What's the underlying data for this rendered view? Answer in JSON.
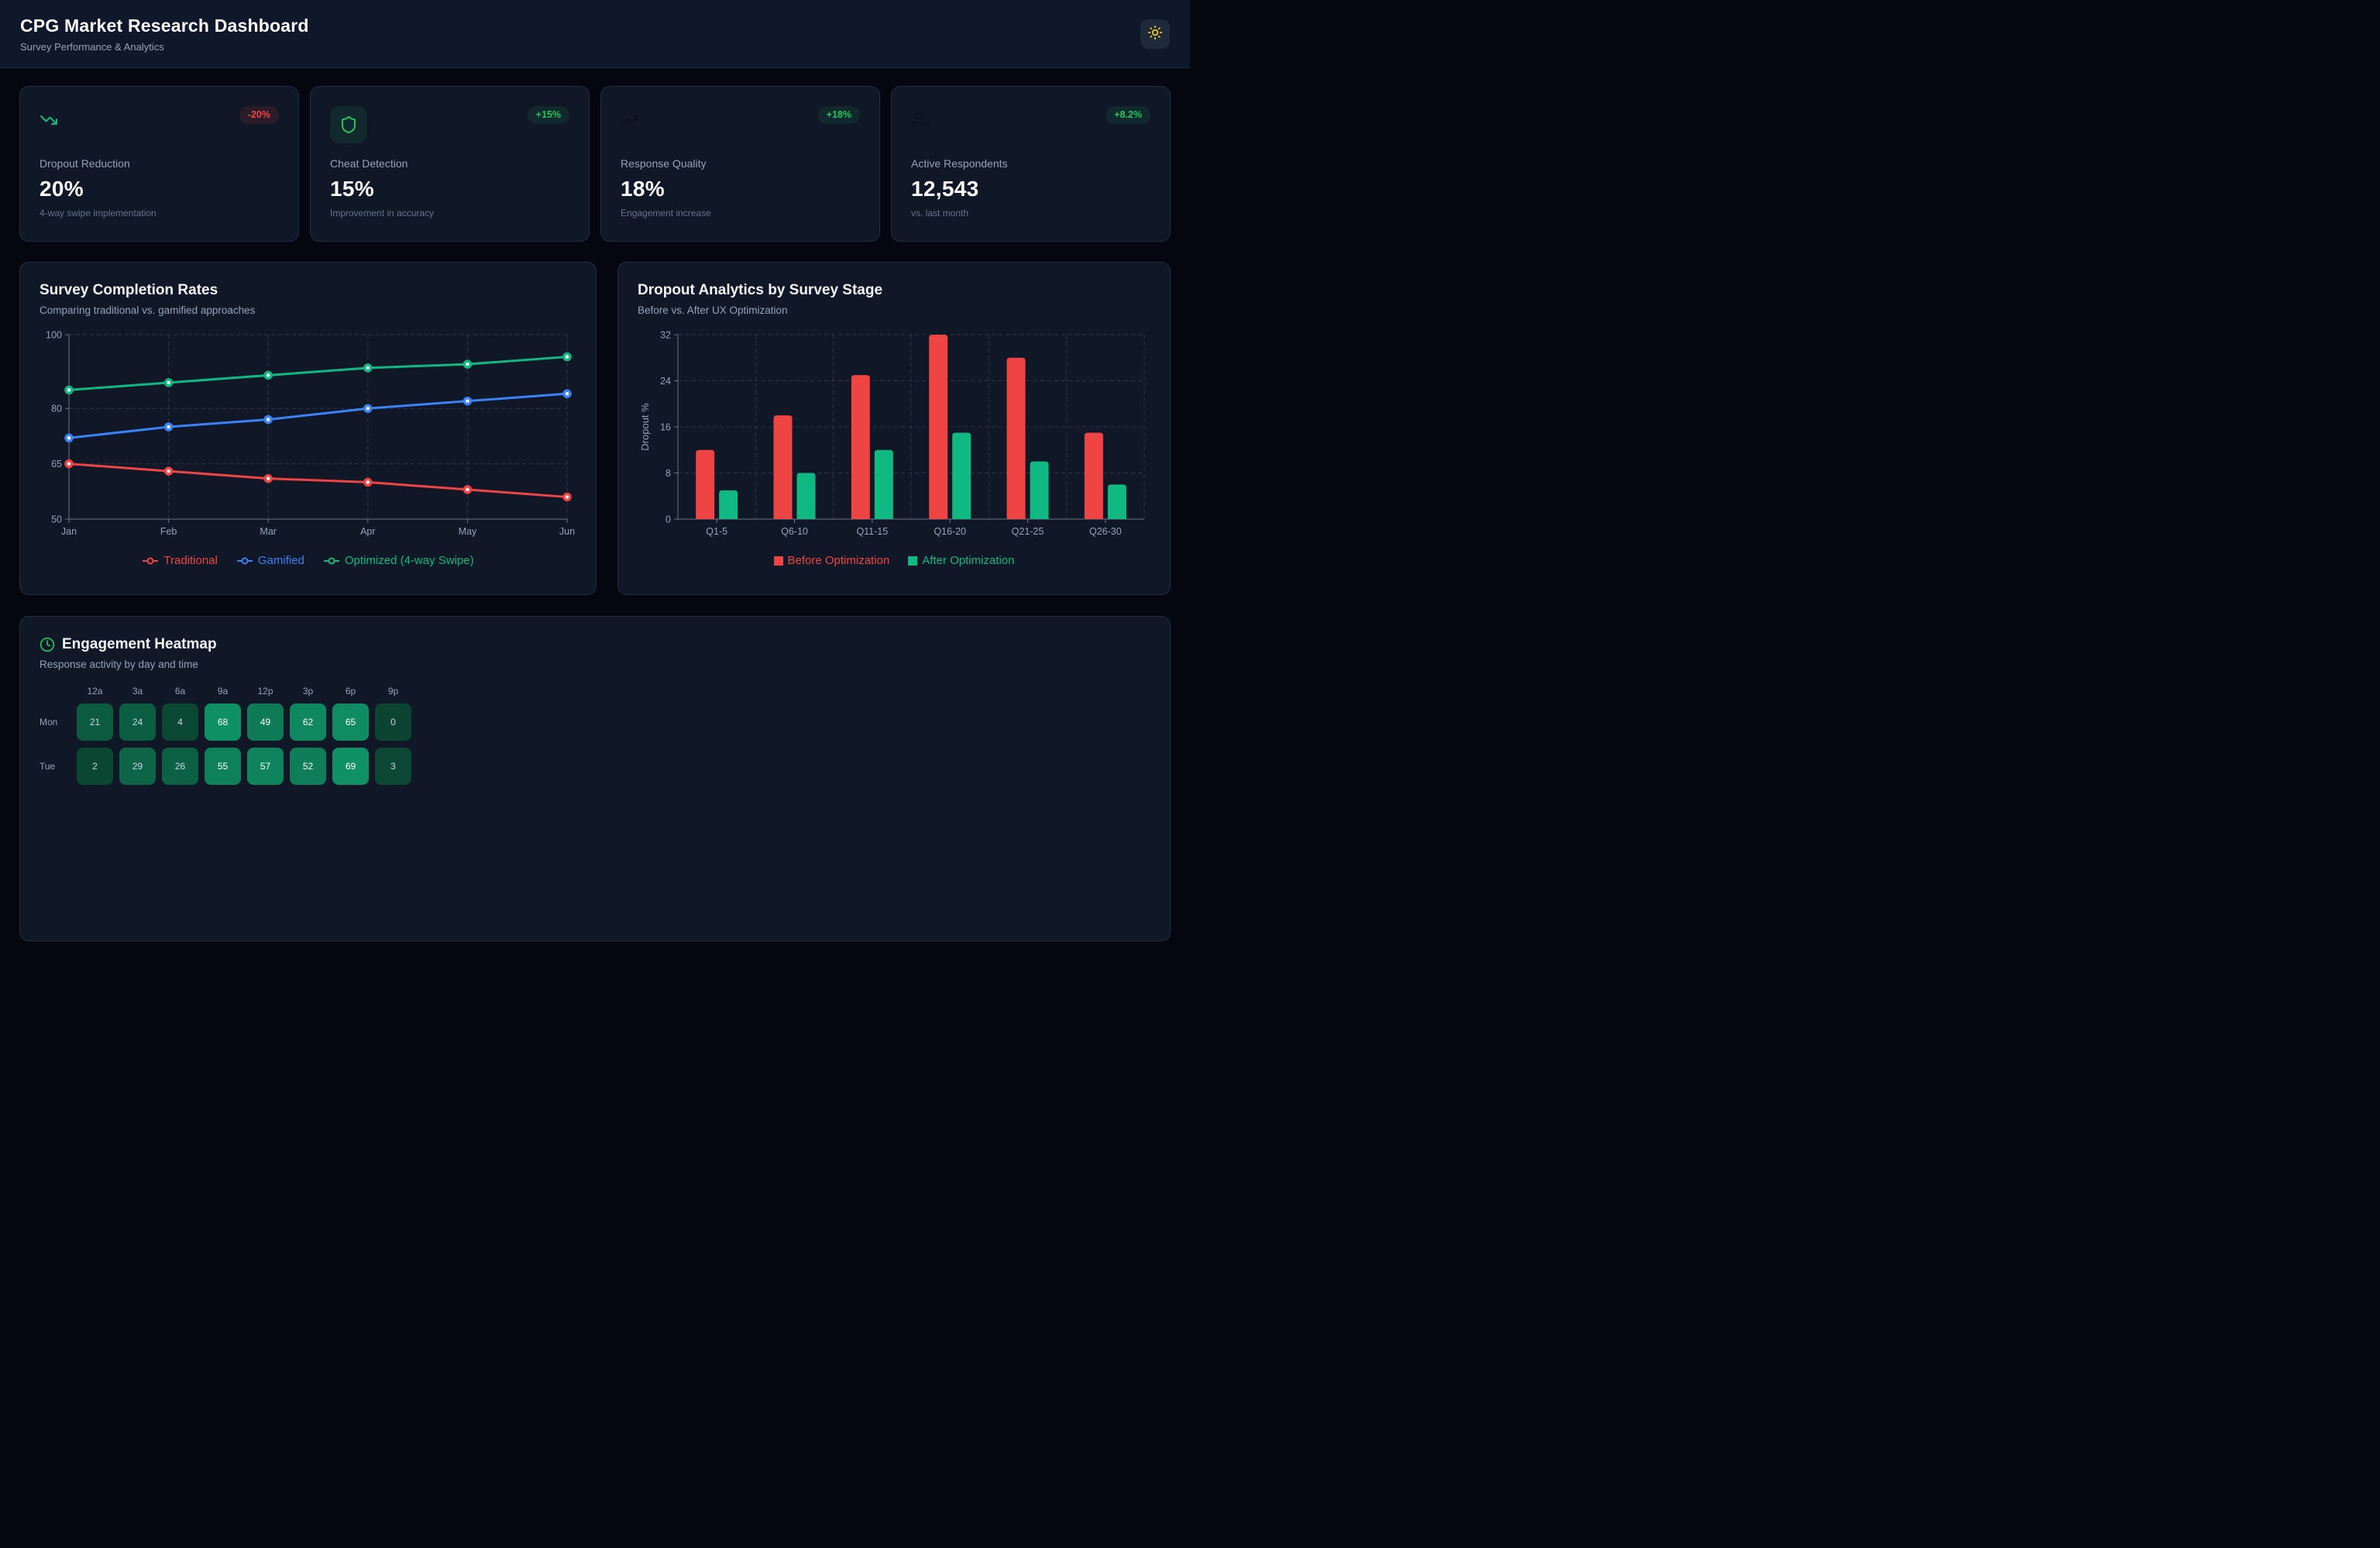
{
  "header": {
    "title": "CPG Market Research Dashboard",
    "subtitle": "Survey Performance & Analytics",
    "theme_icon": "sun-icon",
    "theme_icon_color": "#facc15"
  },
  "kpi_cards": [
    {
      "icon": "trending-down-icon",
      "icon_color": "#10b981",
      "icon_bg": "none",
      "badge": "-20%",
      "badge_color": "#ef4444",
      "badge_bg": "rgba(239,68,68,0.12)",
      "title": "Dropout Reduction",
      "value": "20%",
      "subtitle": "4-way swipe implementation"
    },
    {
      "icon": "shield-icon",
      "icon_color": "#22c55e",
      "icon_bg": "rgba(34,197,94,0.10)",
      "badge": "+15%",
      "badge_color": "#22c55e",
      "badge_bg": "rgba(34,197,94,0.10)",
      "title": "Cheat Detection",
      "value": "15%",
      "subtitle": "Improvement in accuracy"
    },
    {
      "icon": "trending-up-icon",
      "icon_color": "#0b1120",
      "icon_bg": "none",
      "badge": "+18%",
      "badge_color": "#22c55e",
      "badge_bg": "rgba(34,197,94,0.10)",
      "title": "Response Quality",
      "value": "18%",
      "subtitle": "Engagement increase"
    },
    {
      "icon": "users-icon",
      "icon_color": "#0b1120",
      "icon_bg": "none",
      "badge": "+8.2%",
      "badge_color": "#22c55e",
      "badge_bg": "rgba(34,197,94,0.10)",
      "title": "Active Respondents",
      "value": "12,543",
      "subtitle": "vs. last month"
    }
  ],
  "chart_data": [
    {
      "type": "line",
      "title": "Survey Completion Rates",
      "subtitle": "Comparing traditional vs. gamified approaches",
      "x": [
        "Jan",
        "Feb",
        "Mar",
        "Apr",
        "May",
        "Jun"
      ],
      "series": [
        {
          "name": "Traditional",
          "color": "#ef4444",
          "values": [
            65,
            63,
            61,
            60,
            58,
            56
          ]
        },
        {
          "name": "Gamified",
          "color": "#3b82f6",
          "values": [
            72,
            75,
            77,
            80,
            82,
            84
          ]
        },
        {
          "name": "Optimized (4-way Swipe)",
          "color": "#10b981",
          "values": [
            85,
            87,
            89,
            91,
            92,
            94
          ]
        }
      ],
      "ylim": [
        50,
        100
      ],
      "y_ticks": [
        50,
        65,
        80,
        100
      ],
      "grid": "dashed",
      "legend_position": "bottom"
    },
    {
      "type": "bar",
      "title": "Dropout Analytics by Survey Stage",
      "subtitle": "Before vs. After UX Optimization",
      "ylabel": "Dropout %",
      "categories": [
        "Q1-5",
        "Q6-10",
        "Q11-15",
        "Q16-20",
        "Q21-25",
        "Q26-30"
      ],
      "series": [
        {
          "name": "Before Optimization",
          "color": "#ef4444",
          "values": [
            12,
            18,
            25,
            32,
            28,
            15
          ]
        },
        {
          "name": "After Optimization",
          "color": "#10b981",
          "values": [
            5,
            8,
            12,
            15,
            10,
            6
          ]
        }
      ],
      "ylim": [
        0,
        32
      ],
      "y_ticks": [
        0,
        8,
        16,
        24,
        32
      ],
      "grid": "dashed",
      "legend_position": "bottom"
    },
    {
      "type": "heatmap",
      "title": "Engagement Heatmap",
      "subtitle": "Response activity by day and time",
      "title_icon": "clock-icon",
      "title_icon_color": "#22c55e",
      "columns": [
        "12a",
        "3a",
        "6a",
        "9a",
        "12p",
        "3p",
        "6p",
        "9p"
      ],
      "rows": [
        {
          "day": "Mon",
          "values": [
            21,
            24,
            4,
            68,
            49,
            62,
            65,
            0
          ]
        },
        {
          "day": "Tue",
          "values": [
            2,
            29,
            26,
            55,
            57,
            52,
            69,
            3
          ]
        }
      ],
      "color_low": "#0b4431",
      "color_high": "#0f9166",
      "value_max": 70
    }
  ],
  "theme": {
    "page_bg": "#04070f",
    "card_bg": "#101726",
    "border": "#242d40",
    "grid_color": "#44506333",
    "axis_color": "#6b7687",
    "tick_text": "#94a3b8"
  }
}
